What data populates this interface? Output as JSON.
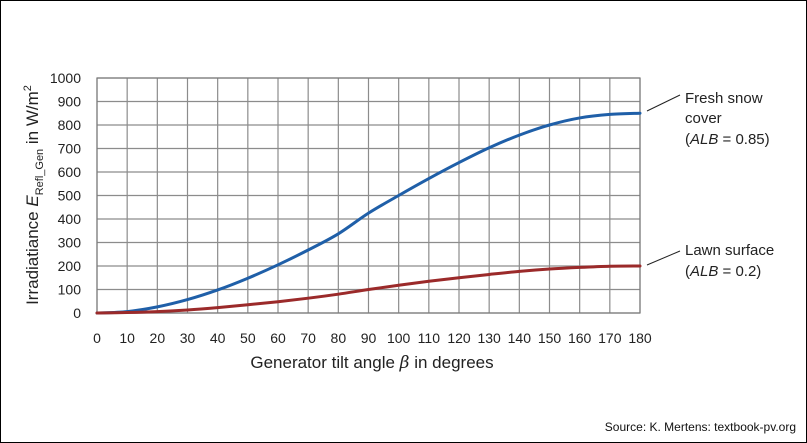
{
  "chart_data": {
    "type": "line",
    "xlabel": {
      "prefix": "Generator tilt angle ",
      "symbol": "β",
      "suffix": " in degrees"
    },
    "ylabel": {
      "prefix": "Irradiatiance ",
      "symbol": "E",
      "subscript": "Refl_Gen",
      "suffix": " in W/m",
      "superscript": "2"
    },
    "xlim": [
      0,
      180
    ],
    "ylim": [
      0,
      1000
    ],
    "x_ticks": [
      "0",
      "10",
      "20",
      "30",
      "40",
      "50",
      "60",
      "70",
      "80",
      "90",
      "100",
      "110",
      "120",
      "130",
      "140",
      "150",
      "160",
      "170",
      "180"
    ],
    "y_ticks": [
      "0",
      "100",
      "200",
      "300",
      "400",
      "500",
      "600",
      "700",
      "800",
      "900",
      "1000"
    ],
    "grid": true,
    "series": [
      {
        "name": "Fresh snow cover (ALB = 0.85)",
        "color": "#1f5fa8",
        "x": [
          0,
          10,
          20,
          30,
          40,
          50,
          60,
          70,
          80,
          90,
          100,
          110,
          120,
          130,
          140,
          150,
          160,
          170,
          180
        ],
        "y": [
          0,
          6,
          26,
          57,
          98,
          148,
          205,
          268,
          337,
          425,
          500,
          572,
          640,
          703,
          757,
          800,
          830,
          845,
          850
        ]
      },
      {
        "name": "Lawn surface (ALB = 0.2)",
        "color": "#9b2a2a",
        "x": [
          0,
          10,
          20,
          30,
          40,
          50,
          60,
          70,
          80,
          90,
          100,
          110,
          120,
          130,
          140,
          150,
          160,
          170,
          180
        ],
        "y": [
          0,
          2,
          6,
          13,
          23,
          35,
          48,
          63,
          80,
          100,
          118,
          135,
          150,
          164,
          177,
          187,
          194,
          199,
          200
        ]
      }
    ],
    "annotations": [
      {
        "series": 0,
        "lines": [
          "Fresh snow",
          "cover"
        ],
        "alb_prefix": "(",
        "alb_var": "ALB",
        "alb_value": " = 0.85)"
      },
      {
        "series": 1,
        "lines": [
          "Lawn surface"
        ],
        "alb_prefix": "(",
        "alb_var": "ALB",
        "alb_value": " = 0.2)"
      }
    ]
  },
  "source": "Source: K. Mertens: textbook-pv.org"
}
